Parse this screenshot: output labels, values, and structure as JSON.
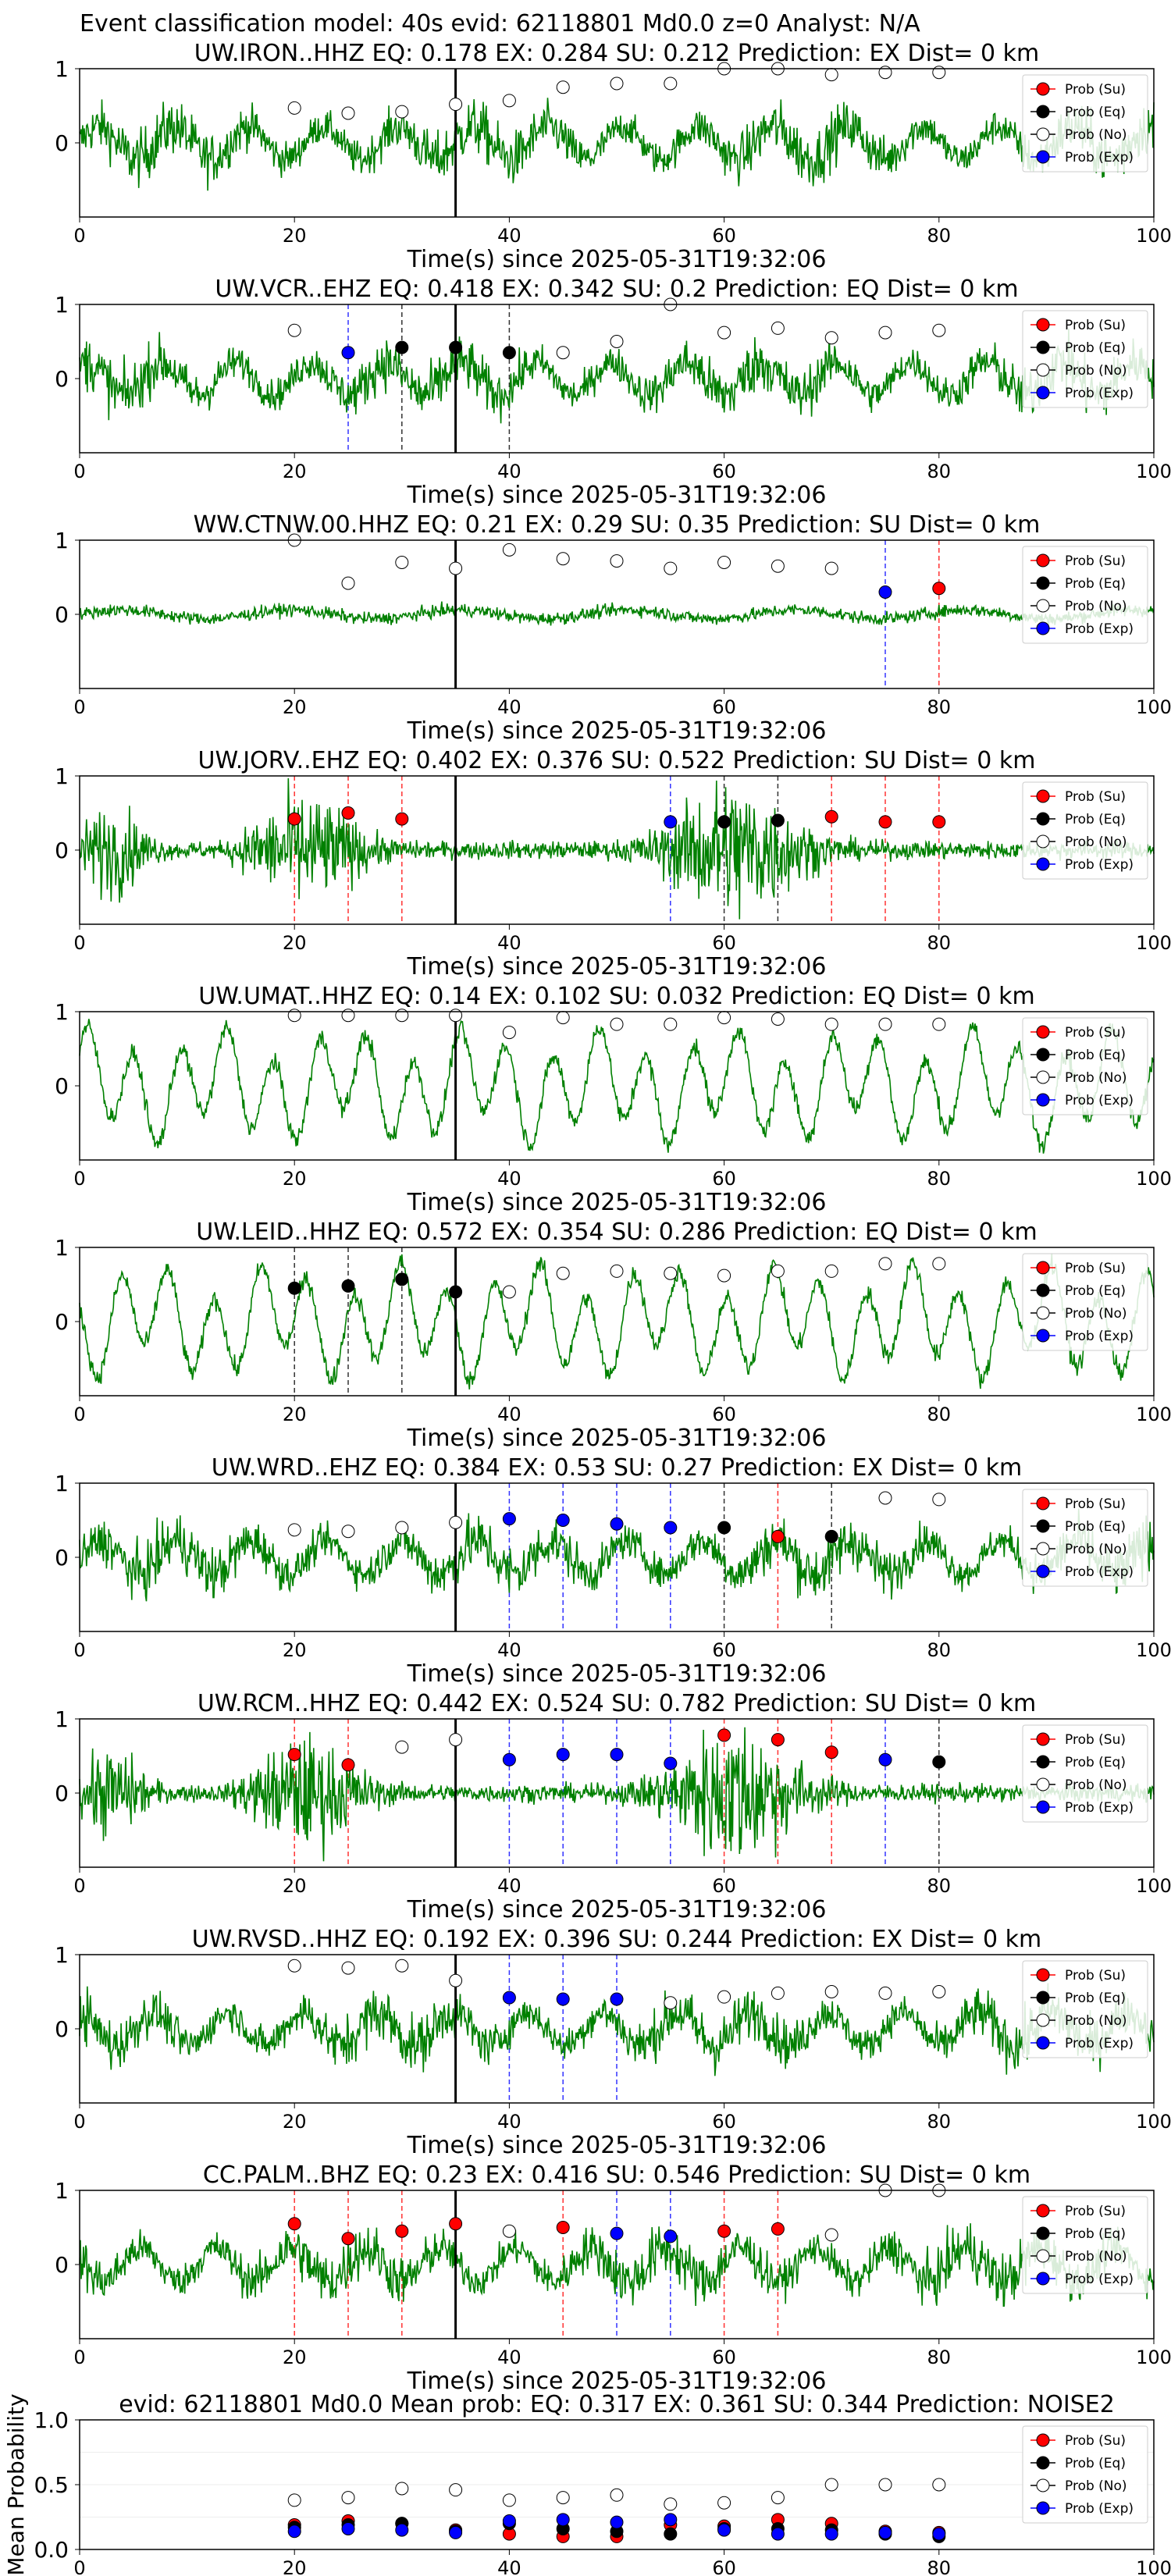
{
  "suptitle": "Event classification model: 40s evid: 62118801 Md0.0 z=0 Analyst: N/A",
  "legend_labels": [
    "Prob (Su)",
    "Prob (Eq)",
    "Prob (No)",
    "Prob (Exp)"
  ],
  "colors": {
    "waveform": "#008000",
    "su": "#ff0000",
    "eq": "#000000",
    "no": "#ffffff",
    "exp": "#0000ff",
    "pick_line": "#000000"
  },
  "chart_data": [
    {
      "type": "line",
      "title": "UW.IRON..HHZ   EQ: 0.178  EX: 0.284  SU: 0.212   Prediction: EX    Dist= 0 km",
      "xlabel": "Time(s) since 2025-05-31T19:32:06",
      "xlim": [
        0,
        100
      ],
      "ylim": [
        -1,
        1
      ],
      "xticks": [
        "0",
        "20",
        "40",
        "60",
        "80",
        "100"
      ],
      "yticks": [
        "0",
        "1"
      ],
      "style": "noise",
      "pick_time": 35,
      "prob_x": [
        20,
        25,
        30,
        35,
        40,
        45,
        50,
        55,
        60,
        65,
        70,
        75,
        80
      ],
      "prob_y": [
        0.47,
        0.4,
        0.42,
        0.52,
        0.57,
        0.75,
        0.8,
        0.8,
        1.0,
        1.0,
        0.92,
        0.95,
        0.95
      ],
      "classes": [
        "no",
        "no",
        "no",
        "no",
        "no",
        "no",
        "no",
        "no",
        "no",
        "no",
        "no",
        "no",
        "no"
      ]
    },
    {
      "type": "line",
      "title": "UW.VCR..EHZ   EQ: 0.418  EX: 0.342  SU: 0.2   Prediction: EQ    Dist= 0 km",
      "xlabel": "Time(s) since 2025-05-31T19:32:06",
      "xlim": [
        0,
        100
      ],
      "ylim": [
        -1,
        1
      ],
      "xticks": [
        "0",
        "20",
        "40",
        "60",
        "80",
        "100"
      ],
      "yticks": [
        "0",
        "1"
      ],
      "style": "noise",
      "pick_time": 35,
      "prob_x": [
        20,
        25,
        30,
        35,
        40,
        45,
        50,
        55,
        60,
        65,
        70,
        75,
        80
      ],
      "prob_y": [
        0.65,
        0.35,
        0.42,
        0.42,
        0.35,
        0.35,
        0.5,
        1.0,
        0.62,
        0.68,
        0.55,
        0.62,
        0.65
      ],
      "classes": [
        "no",
        "exp",
        "eq",
        "eq",
        "eq",
        "no",
        "no",
        "no",
        "no",
        "no",
        "no",
        "no",
        "no"
      ]
    },
    {
      "type": "line",
      "title": "WW.CTNW.00.HHZ   EQ: 0.21  EX: 0.29  SU: 0.35   Prediction: SU    Dist= 0 km",
      "xlabel": "Time(s) since 2025-05-31T19:32:06",
      "xlim": [
        0,
        100
      ],
      "ylim": [
        -1,
        1
      ],
      "xticks": [
        "0",
        "20",
        "40",
        "60",
        "80",
        "100"
      ],
      "yticks": [
        "0",
        "1"
      ],
      "style": "low",
      "pick_time": 35,
      "prob_x": [
        20,
        25,
        30,
        35,
        40,
        45,
        50,
        55,
        60,
        65,
        70,
        75,
        80
      ],
      "prob_y": [
        1.0,
        0.42,
        0.7,
        0.62,
        0.87,
        0.75,
        0.72,
        0.62,
        0.7,
        0.65,
        0.62,
        0.3,
        0.35
      ],
      "classes": [
        "no",
        "no",
        "no",
        "no",
        "no",
        "no",
        "no",
        "no",
        "no",
        "no",
        "no",
        "exp",
        "su"
      ]
    },
    {
      "type": "line",
      "title": "UW.JORV..EHZ   EQ: 0.402  EX: 0.376  SU: 0.522   Prediction: SU    Dist= 0 km",
      "xlabel": "Time(s) since 2025-05-31T19:32:06",
      "xlim": [
        0,
        100
      ],
      "ylim": [
        -1,
        1
      ],
      "xticks": [
        "0",
        "20",
        "40",
        "60",
        "80",
        "100"
      ],
      "yticks": [
        "0",
        "1"
      ],
      "style": "bursts",
      "pick_time": 35,
      "prob_x": [
        20,
        25,
        30,
        55,
        60,
        65,
        70,
        75,
        80
      ],
      "prob_y": [
        0.42,
        0.5,
        0.42,
        0.38,
        0.38,
        0.4,
        0.45,
        0.38,
        0.38
      ],
      "classes": [
        "su",
        "su",
        "su",
        "exp",
        "eq",
        "eq",
        "su",
        "su",
        "su"
      ]
    },
    {
      "type": "line",
      "title": "UW.UMAT..HHZ   EQ: 0.14  EX: 0.102  SU: 0.032   Prediction: EQ    Dist= 0 km",
      "xlabel": "Time(s) since 2025-05-31T19:32:06",
      "xlim": [
        0,
        100
      ],
      "ylim": [
        -1,
        1
      ],
      "xticks": [
        "0",
        "20",
        "40",
        "60",
        "80",
        "100"
      ],
      "yticks": [
        "0",
        "1"
      ],
      "style": "wavy",
      "pick_time": 35,
      "prob_x": [
        20,
        25,
        30,
        35,
        40,
        45,
        50,
        55,
        60,
        65,
        70,
        75,
        80
      ],
      "prob_y": [
        0.95,
        0.95,
        0.95,
        0.95,
        0.72,
        0.92,
        0.83,
        0.83,
        0.92,
        0.9,
        0.83,
        0.83,
        0.83
      ],
      "classes": [
        "no",
        "no",
        "no",
        "no",
        "no",
        "no",
        "no",
        "no",
        "no",
        "no",
        "no",
        "no",
        "no"
      ]
    },
    {
      "type": "line",
      "title": "UW.LEID..HHZ   EQ: 0.572  EX: 0.354  SU: 0.286   Prediction: EQ    Dist= 0 km",
      "xlabel": "Time(s) since 2025-05-31T19:32:06",
      "xlim": [
        0,
        100
      ],
      "ylim": [
        -1,
        1
      ],
      "xticks": [
        "0",
        "20",
        "40",
        "60",
        "80",
        "100"
      ],
      "yticks": [
        "0",
        "1"
      ],
      "style": "wavy",
      "pick_time": 35,
      "prob_x": [
        20,
        25,
        30,
        35,
        40,
        45,
        50,
        55,
        60,
        65,
        70,
        75,
        80
      ],
      "prob_y": [
        0.45,
        0.48,
        0.57,
        0.4,
        0.4,
        0.65,
        0.68,
        0.65,
        0.62,
        0.68,
        0.68,
        0.78,
        0.78
      ],
      "classes": [
        "eq",
        "eq",
        "eq",
        "eq",
        "no",
        "no",
        "no",
        "no",
        "no",
        "no",
        "no",
        "no",
        "no"
      ]
    },
    {
      "type": "line",
      "title": "UW.WRD..EHZ   EQ: 0.384  EX: 0.53  SU: 0.27   Prediction: EX    Dist= 0 km",
      "xlabel": "Time(s) since 2025-05-31T19:32:06",
      "xlim": [
        0,
        100
      ],
      "ylim": [
        -1,
        1
      ],
      "xticks": [
        "0",
        "20",
        "40",
        "60",
        "80",
        "100"
      ],
      "yticks": [
        "0",
        "1"
      ],
      "style": "noise",
      "pick_time": 35,
      "prob_x": [
        20,
        25,
        30,
        35,
        40,
        45,
        50,
        55,
        60,
        65,
        70,
        75,
        80
      ],
      "prob_y": [
        0.37,
        0.35,
        0.4,
        0.47,
        0.52,
        0.5,
        0.45,
        0.4,
        0.4,
        0.28,
        0.28,
        0.8,
        0.78
      ],
      "classes": [
        "no",
        "no",
        "no",
        "no",
        "exp",
        "exp",
        "exp",
        "exp",
        "eq",
        "su",
        "eq",
        "no",
        "no"
      ]
    },
    {
      "type": "line",
      "title": "UW.RCM..HHZ   EQ: 0.442  EX: 0.524  SU: 0.782   Prediction: SU    Dist= 0 km",
      "xlabel": "Time(s) since 2025-05-31T19:32:06",
      "xlim": [
        0,
        100
      ],
      "ylim": [
        -1,
        1
      ],
      "xticks": [
        "0",
        "20",
        "40",
        "60",
        "80",
        "100"
      ],
      "yticks": [
        "0",
        "1"
      ],
      "style": "bursts",
      "pick_time": 35,
      "prob_x": [
        20,
        25,
        30,
        35,
        40,
        45,
        50,
        55,
        60,
        65,
        70,
        75,
        80
      ],
      "prob_y": [
        0.52,
        0.38,
        0.62,
        0.72,
        0.45,
        0.52,
        0.52,
        0.4,
        0.78,
        0.72,
        0.55,
        0.45,
        0.42
      ],
      "classes": [
        "su",
        "su",
        "no",
        "no",
        "exp",
        "exp",
        "exp",
        "exp",
        "su",
        "su",
        "su",
        "exp",
        "eq"
      ]
    },
    {
      "type": "line",
      "title": "UW.RVSD..HHZ   EQ: 0.192  EX: 0.396  SU: 0.244   Prediction: EX    Dist= 0 km",
      "xlabel": "Time(s) since 2025-05-31T19:32:06",
      "xlim": [
        0,
        100
      ],
      "ylim": [
        -1,
        1
      ],
      "xticks": [
        "0",
        "20",
        "40",
        "60",
        "80",
        "100"
      ],
      "yticks": [
        "0",
        "1"
      ],
      "style": "noise",
      "pick_time": 35,
      "prob_x": [
        20,
        25,
        30,
        35,
        40,
        45,
        50,
        55,
        60,
        65,
        70,
        75,
        80
      ],
      "prob_y": [
        0.85,
        0.82,
        0.85,
        0.65,
        0.42,
        0.4,
        0.4,
        0.35,
        0.43,
        0.48,
        0.5,
        0.48,
        0.5
      ],
      "classes": [
        "no",
        "no",
        "no",
        "no",
        "exp",
        "exp",
        "exp",
        "no",
        "no",
        "no",
        "no",
        "no",
        "no"
      ]
    },
    {
      "type": "line",
      "title": "CC.PALM..BHZ   EQ: 0.23  EX: 0.416  SU: 0.546   Prediction: SU    Dist= 0 km",
      "xlabel": "Time(s) since 2025-05-31T19:32:06",
      "xlim": [
        0,
        100
      ],
      "ylim": [
        -1,
        1
      ],
      "xticks": [
        "0",
        "20",
        "40",
        "60",
        "80",
        "100"
      ],
      "yticks": [
        "0",
        "1"
      ],
      "style": "noise",
      "pick_time": 35,
      "prob_x": [
        20,
        25,
        30,
        35,
        40,
        45,
        50,
        55,
        60,
        65,
        70,
        75,
        80
      ],
      "prob_y": [
        0.55,
        0.35,
        0.45,
        0.55,
        0.45,
        0.5,
        0.42,
        0.38,
        0.45,
        0.48,
        0.4,
        1.0,
        1.0
      ],
      "classes": [
        "su",
        "su",
        "su",
        "su",
        "no",
        "su",
        "exp",
        "exp",
        "su",
        "su",
        "no",
        "no",
        "no"
      ]
    },
    {
      "type": "scatter",
      "title": "evid: 62118801  Md0.0   Mean prob:   EQ: 0.317  EX: 0.361  SU: 0.344   Prediction: NOISE2",
      "ylabel": "Mean Probability",
      "xlim": [
        0,
        100
      ],
      "ylim": [
        0,
        1
      ],
      "xticks": [
        "0",
        "20",
        "40",
        "60",
        "80",
        "100"
      ],
      "yticks": [
        "0.0",
        "0.5",
        "1.0"
      ],
      "x": [
        20,
        25,
        30,
        35,
        40,
        45,
        50,
        55,
        60,
        65,
        70,
        75,
        80
      ],
      "series": [
        {
          "key": "su",
          "values": [
            0.19,
            0.22,
            0.2,
            0.15,
            0.12,
            0.1,
            0.1,
            0.19,
            0.18,
            0.23,
            0.2,
            0.14,
            0.13
          ]
        },
        {
          "key": "eq",
          "values": [
            0.17,
            0.19,
            0.2,
            0.14,
            0.2,
            0.16,
            0.14,
            0.12,
            0.16,
            0.16,
            0.15,
            0.12,
            0.1
          ]
        },
        {
          "key": "no",
          "values": [
            0.38,
            0.4,
            0.47,
            0.46,
            0.38,
            0.4,
            0.42,
            0.35,
            0.36,
            0.4,
            0.5,
            0.5,
            0.5
          ]
        },
        {
          "key": "exp",
          "values": [
            0.14,
            0.16,
            0.15,
            0.13,
            0.22,
            0.23,
            0.21,
            0.23,
            0.15,
            0.12,
            0.12,
            0.13,
            0.12
          ]
        }
      ]
    }
  ]
}
